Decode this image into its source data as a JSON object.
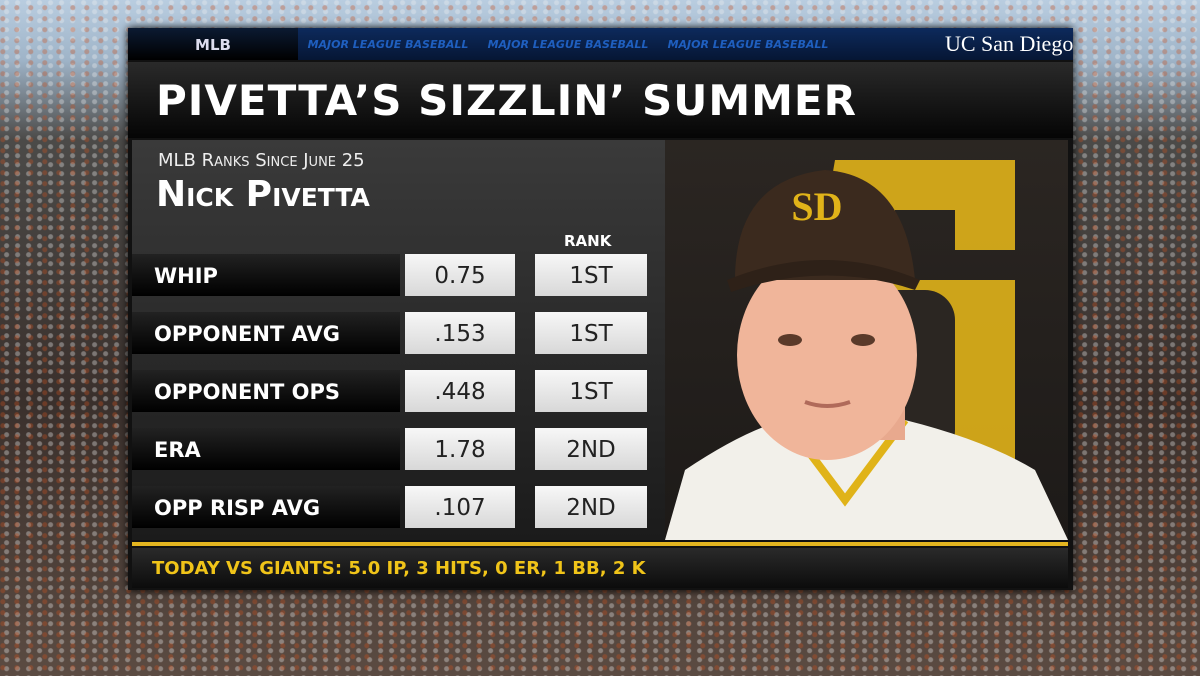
{
  "tabs": [
    "MLB",
    "MAJOR LEAGUE BASEBALL",
    "MAJOR LEAGUE BASEBALL",
    "MAJOR LEAGUE BASEBALL"
  ],
  "sponsor": "UC San Diego Health",
  "title": "PIVETTA’S SIZZLIN’ SUMMER",
  "subtitle": "MLB Ranks Since June 25",
  "player": "Nick Pivetta",
  "logo": "SD",
  "table": {
    "header": "RANK",
    "rows": [
      [
        "WHIP",
        "0.75",
        "1ST"
      ],
      [
        "OPPONENT AVG",
        ".153",
        "1ST"
      ],
      [
        "OPPONENT OPS",
        ".448",
        "1ST"
      ],
      [
        "ERA",
        "1.78",
        "2ND"
      ],
      [
        "OPP RISP AVG",
        ".107",
        "2ND"
      ]
    ]
  },
  "footer": "TODAY VS GIANTS: 5.0 IP, 3 HITS, 0 ER, 1 BB, 2 K"
}
